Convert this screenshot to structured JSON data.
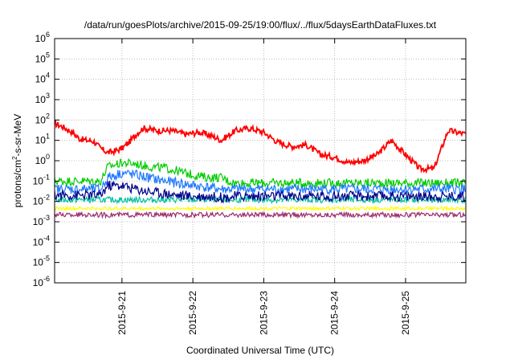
{
  "chart_data": {
    "type": "line",
    "title": "/data/run/goesPlots/archive/2015-09-25/19:00/flux/../flux/5daysEarthDataFluxes.txt",
    "xlabel": "Coordinated Universal Time (UTC)",
    "ylabel": {
      "pre": "protons/cm",
      "sup": "2",
      "post": "-s-sr-MeV"
    },
    "x_ticks": [
      "2015-9-21",
      "2015-9-22",
      "2015-9-23",
      "2015-9-24",
      "2015-9-25"
    ],
    "x_range_days": [
      -0.95,
      4.85
    ],
    "x_tick_days": [
      0,
      1,
      2,
      3,
      4
    ],
    "y_scale": "log",
    "y_range_exp": [
      -6,
      6
    ],
    "y_ticks": [
      {
        "base": "10",
        "exp": "-6"
      },
      {
        "base": "10",
        "exp": "-5"
      },
      {
        "base": "10",
        "exp": "-4"
      },
      {
        "base": "10",
        "exp": "-3"
      },
      {
        "base": "10",
        "exp": "-2"
      },
      {
        "base": "10",
        "exp": "-1"
      },
      {
        "base": "10",
        "exp": "0"
      },
      {
        "base": "10",
        "exp": "1"
      },
      {
        "base": "10",
        "exp": "2"
      },
      {
        "base": "10",
        "exp": "3"
      },
      {
        "base": "10",
        "exp": "4"
      },
      {
        "base": "10",
        "exp": "5"
      },
      {
        "base": "10",
        "exp": "6"
      }
    ],
    "grid": true,
    "series": [
      {
        "color": "#ff0000",
        "x": [
          -0.95,
          -0.8,
          -0.7,
          -0.6,
          -0.5,
          -0.4,
          -0.3,
          -0.2,
          -0.1,
          0.0,
          0.1,
          0.2,
          0.3,
          0.5,
          0.7,
          0.9,
          1.1,
          1.3,
          1.4,
          1.6,
          1.8,
          2.0,
          2.2,
          2.4,
          2.6,
          2.8,
          3.0,
          3.2,
          3.4,
          3.6,
          3.8,
          4.0,
          4.2,
          4.4,
          4.6,
          4.85
        ],
        "y": [
          70,
          40,
          25,
          12,
          10,
          9,
          4,
          2.5,
          3,
          4,
          8,
          20,
          40,
          30,
          30,
          20,
          25,
          15,
          10,
          30,
          40,
          25,
          8,
          5,
          6,
          2,
          1.5,
          0.8,
          1,
          2,
          10,
          2,
          0.4,
          0.4,
          30,
          20
        ]
      },
      {
        "color": "#00cc00",
        "x": [
          -0.95,
          -0.5,
          -0.3,
          -0.2,
          0.0,
          0.2,
          0.4,
          0.6,
          0.8,
          1.0,
          1.2,
          1.4,
          1.5,
          1.6,
          1.8,
          2.0,
          2.5,
          3.0,
          3.5,
          4.0,
          4.5,
          4.85
        ],
        "y": [
          0.1,
          0.1,
          0.1,
          0.5,
          0.8,
          0.7,
          0.5,
          0.45,
          0.3,
          0.2,
          0.15,
          0.15,
          0.1,
          0.08,
          0.08,
          0.08,
          0.08,
          0.08,
          0.08,
          0.08,
          0.08,
          0.08
        ]
      },
      {
        "color": "#1e78ff",
        "x": [
          -0.95,
          -0.5,
          -0.3,
          -0.2,
          0.0,
          0.2,
          0.4,
          0.6,
          0.8,
          1.0,
          1.2,
          1.4,
          1.5,
          1.6,
          1.8,
          2.0,
          2.5,
          3.0,
          3.5,
          4.0,
          4.5,
          4.85
        ],
        "y": [
          0.04,
          0.04,
          0.04,
          0.15,
          0.25,
          0.2,
          0.14,
          0.1,
          0.08,
          0.06,
          0.05,
          0.04,
          0.04,
          0.04,
          0.04,
          0.04,
          0.04,
          0.04,
          0.04,
          0.04,
          0.04,
          0.04
        ]
      },
      {
        "color": "#00008b",
        "x": [
          -0.95,
          -0.5,
          -0.3,
          -0.2,
          0.0,
          0.2,
          0.4,
          0.6,
          0.8,
          1.0,
          1.2,
          1.4,
          1.5,
          1.6,
          1.8,
          2.0,
          2.5,
          3.0,
          3.5,
          4.0,
          4.5,
          4.85
        ],
        "y": [
          0.02,
          0.02,
          0.02,
          0.06,
          0.06,
          0.04,
          0.03,
          0.025,
          0.02,
          0.018,
          0.018,
          0.016,
          0.016,
          0.018,
          0.018,
          0.018,
          0.018,
          0.018,
          0.018,
          0.018,
          0.018,
          0.018
        ]
      },
      {
        "color": "#00c0a0",
        "x": [
          -0.95,
          -0.5,
          0.0,
          0.5,
          1.0,
          1.5,
          2.0,
          2.5,
          3.0,
          3.5,
          4.0,
          4.5,
          4.85
        ],
        "y": [
          0.012,
          0.012,
          0.012,
          0.012,
          0.012,
          0.012,
          0.012,
          0.012,
          0.012,
          0.012,
          0.012,
          0.012,
          0.012
        ]
      },
      {
        "color": "#ffff00",
        "x": [
          -0.95,
          -0.5,
          0.0,
          0.5,
          1.0,
          1.5,
          2.0,
          2.5,
          3.0,
          3.5,
          4.0,
          4.5,
          4.85
        ],
        "y": [
          0.0045,
          0.0045,
          0.0045,
          0.0045,
          0.0045,
          0.0045,
          0.0045,
          0.0045,
          0.0045,
          0.0045,
          0.0045,
          0.0045,
          0.0045
        ]
      },
      {
        "color": "#9b2c6e",
        "x": [
          -0.95,
          -0.5,
          0.0,
          0.5,
          1.0,
          1.5,
          2.0,
          2.5,
          3.0,
          3.5,
          4.0,
          4.5,
          4.85
        ],
        "y": [
          0.0022,
          0.0022,
          0.0022,
          0.0022,
          0.0022,
          0.0022,
          0.0022,
          0.0022,
          0.0022,
          0.0022,
          0.0022,
          0.0022,
          0.0022
        ]
      }
    ]
  }
}
